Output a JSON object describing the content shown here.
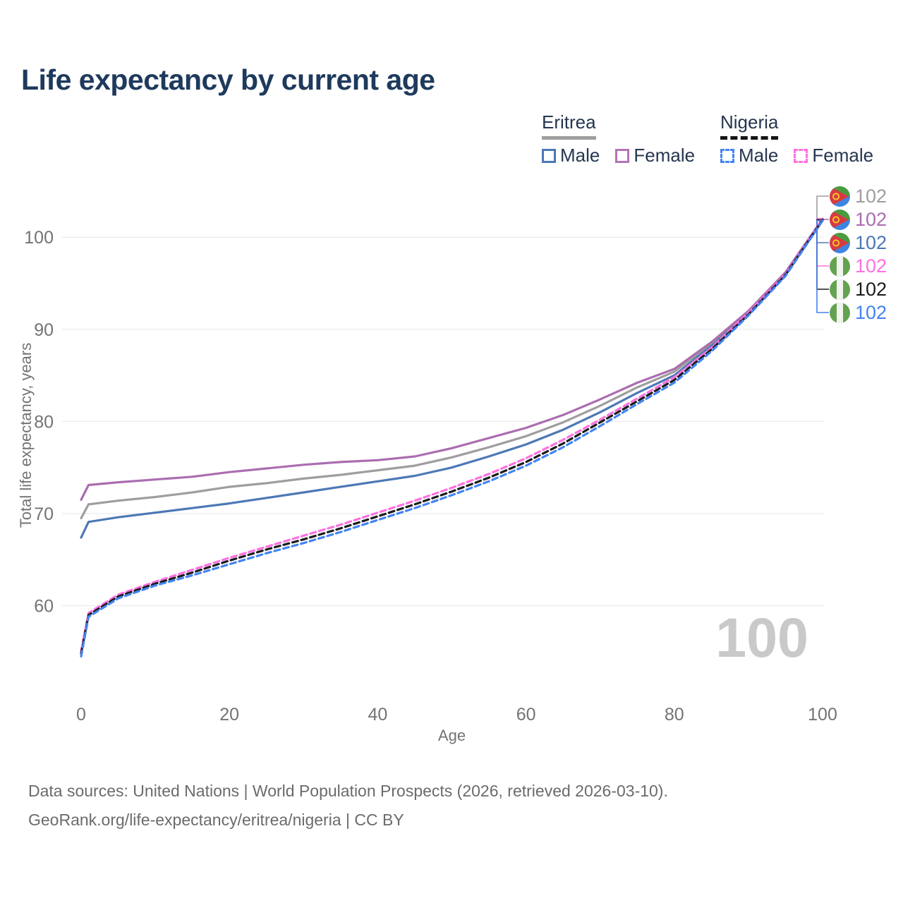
{
  "title": "Life expectancy by current age",
  "legend": {
    "groups": [
      {
        "name": "Eritrea",
        "line_style": "solid",
        "items": [
          {
            "label": "Male"
          },
          {
            "label": "Female"
          }
        ]
      },
      {
        "name": "Nigeria",
        "line_style": "dashed",
        "items": [
          {
            "label": "Male"
          },
          {
            "label": "Female"
          }
        ]
      }
    ]
  },
  "age_counter": "100",
  "footer": {
    "line1": "Data sources: United Nations | World Population Prospects (2026, retrieved 2026-03-10).",
    "line2": "GeoRank.org/life-expectancy/eritrea/nigeria | CC BY"
  },
  "chart_data": {
    "type": "line",
    "title": "Life expectancy by current age",
    "xlabel": "Age",
    "ylabel": "Total life expectancy, years",
    "xlim": [
      0,
      100
    ],
    "ylim": [
      51,
      105
    ],
    "x_ticks": [
      0,
      20,
      40,
      60,
      80,
      100
    ],
    "y_ticks": [
      60,
      70,
      80,
      90,
      100
    ],
    "grid": "horizontal",
    "legend_position": "top-right",
    "x": [
      0,
      1,
      5,
      10,
      15,
      20,
      25,
      30,
      35,
      40,
      45,
      50,
      55,
      60,
      65,
      70,
      75,
      80,
      85,
      90,
      95,
      100
    ],
    "series": [
      {
        "id": "eritrea-total",
        "name": "Eritrea - Both sexes",
        "country": "Eritrea",
        "color": "#9e9e9e",
        "dash": false,
        "end_label": "102",
        "values": [
          69.5,
          71.0,
          71.4,
          71.8,
          72.3,
          72.9,
          73.3,
          73.8,
          74.2,
          74.7,
          75.2,
          76.1,
          77.2,
          78.4,
          79.9,
          81.7,
          83.7,
          85.4,
          88.4,
          91.8,
          96.1,
          101.9
        ]
      },
      {
        "id": "eritrea-female",
        "name": "Eritrea - Female",
        "country": "Eritrea",
        "color": "#ab6db0",
        "dash": false,
        "end_label": "102",
        "values": [
          71.5,
          73.1,
          73.4,
          73.7,
          74.0,
          74.5,
          74.9,
          75.3,
          75.6,
          75.8,
          76.2,
          77.1,
          78.2,
          79.3,
          80.7,
          82.4,
          84.2,
          85.7,
          88.6,
          92.0,
          96.2,
          102.0
        ]
      },
      {
        "id": "eritrea-male",
        "name": "Eritrea - Male",
        "country": "Eritrea",
        "color": "#4c78b5",
        "dash": false,
        "end_label": "102",
        "values": [
          67.4,
          69.1,
          69.6,
          70.1,
          70.6,
          71.1,
          71.7,
          72.3,
          72.9,
          73.5,
          74.1,
          75.0,
          76.2,
          77.5,
          79.1,
          81.0,
          83.1,
          85.0,
          88.2,
          91.7,
          96.0,
          101.8
        ]
      },
      {
        "id": "nigeria-female",
        "name": "Nigeria - Female",
        "country": "Nigeria",
        "color": "#ff70e0",
        "dash": true,
        "end_label": "102",
        "values": [
          55.1,
          59.2,
          61.2,
          62.6,
          63.9,
          65.2,
          66.4,
          67.6,
          68.8,
          70.1,
          71.4,
          72.8,
          74.3,
          76.0,
          78.0,
          80.2,
          82.5,
          84.8,
          88.0,
          91.8,
          96.0,
          102.0
        ]
      },
      {
        "id": "nigeria-total",
        "name": "Nigeria - Both sexes",
        "country": "Nigeria",
        "color": "#1c1c1c",
        "dash": true,
        "end_label": "102",
        "values": [
          54.8,
          59.0,
          61.0,
          62.4,
          63.6,
          64.9,
          66.1,
          67.2,
          68.4,
          69.7,
          71.0,
          72.4,
          73.9,
          75.6,
          77.6,
          79.9,
          82.2,
          84.5,
          87.8,
          91.6,
          95.9,
          101.9
        ]
      },
      {
        "id": "nigeria-male",
        "name": "Nigeria - Male",
        "country": "Nigeria",
        "color": "#4384f2",
        "dash": true,
        "end_label": "102",
        "values": [
          54.5,
          58.8,
          60.8,
          62.2,
          63.3,
          64.5,
          65.7,
          66.8,
          68.0,
          69.3,
          70.6,
          72.0,
          73.5,
          75.2,
          77.2,
          79.5,
          81.9,
          84.2,
          87.6,
          91.5,
          95.8,
          101.8
        ]
      }
    ]
  }
}
